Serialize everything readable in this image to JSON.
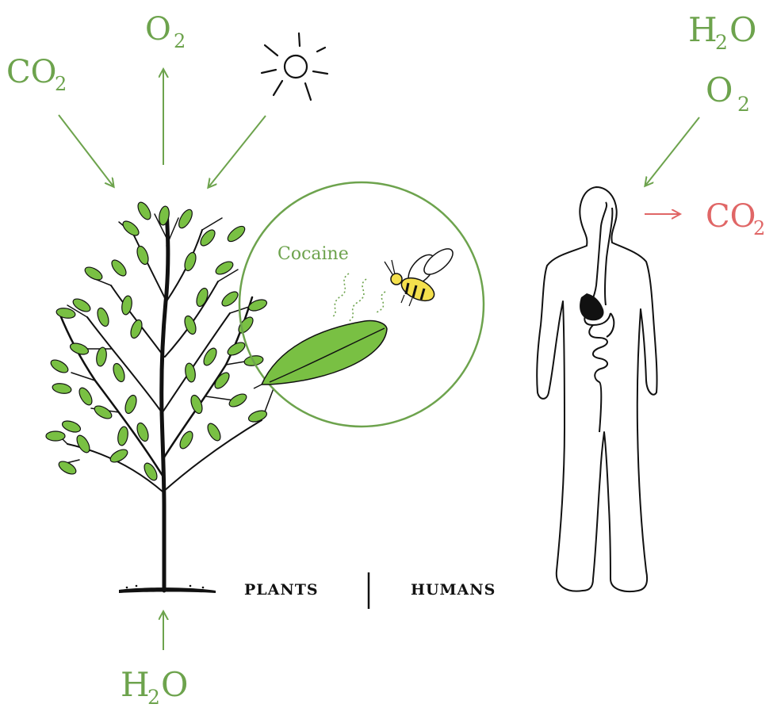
{
  "plant_side": {
    "co2_label": "CO",
    "co2_sub": "2",
    "o2_label": "O",
    "o2_sub": "2",
    "h2o_bottom_main": "H",
    "h2o_bottom_sub": "2",
    "h2o_bottom_tail": "O",
    "cocaine_label": "Cocaine",
    "section_label": "PLANTS"
  },
  "human_side": {
    "h2o_main": "H",
    "h2o_sub": "2",
    "h2o_tail": "O",
    "o2_label": "O",
    "o2_sub": "2",
    "co2_out_label": "CO",
    "co2_out_sub": "2",
    "section_label": "HUMANS"
  },
  "colors": {
    "green": "#6da34d",
    "red": "#e06666",
    "leaf": "#79c043",
    "ink": "#111111"
  }
}
